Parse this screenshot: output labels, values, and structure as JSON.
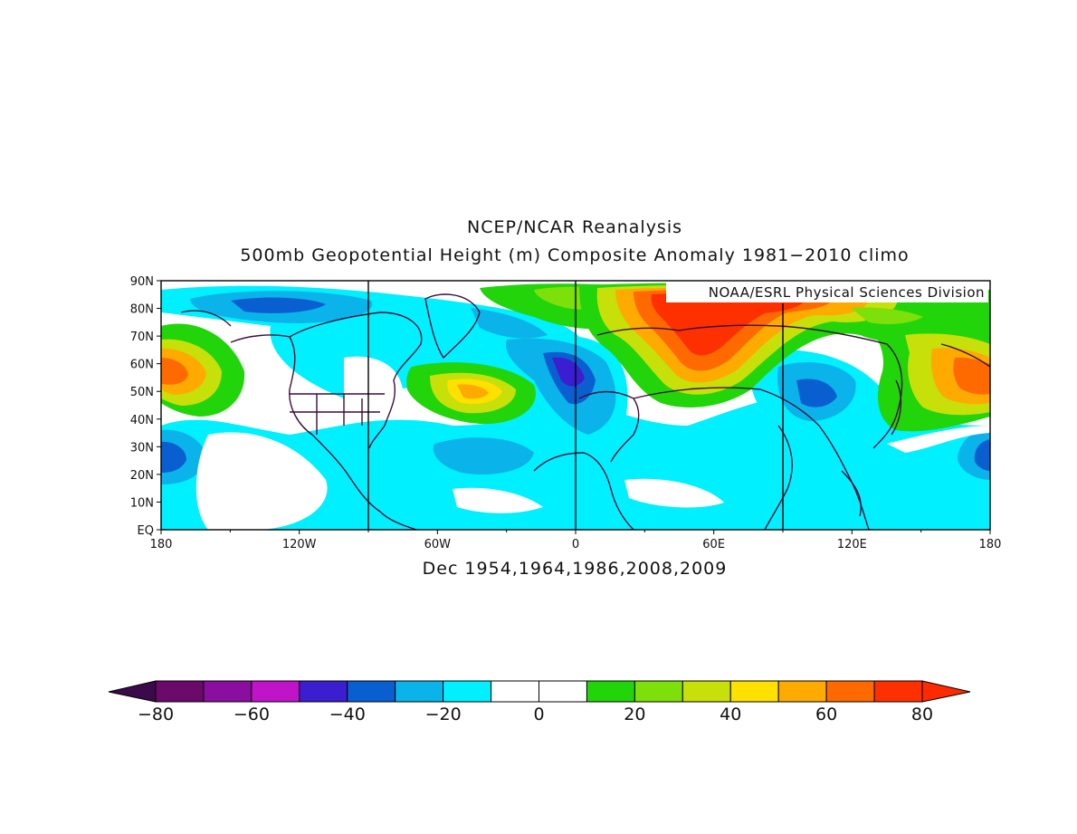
{
  "title_line1": "NCEP/NCAR Reanalysis",
  "title_line2": "500mb Geopotential Height (m) Composite Anomaly 1981−2010 climo",
  "credit": "NOAA/ESRL Physical Sciences Division",
  "caption": "Dec 1954,1964,1986,2008,2009",
  "lat_labels": [
    "90N",
    "80N",
    "70N",
    "60N",
    "50N",
    "40N",
    "30N",
    "20N",
    "10N",
    "EQ"
  ],
  "lon_labels": [
    "180",
    "120W",
    "60W",
    "0",
    "60E",
    "120E",
    "180"
  ],
  "colorbar": {
    "labels": [
      "−80",
      "−60",
      "−40",
      "−20",
      "0",
      "20",
      "40",
      "60",
      "80"
    ],
    "low_arrow_color": "#3a0a4a",
    "high_arrow_color": "#ff2a00",
    "colors": [
      "#6b0a6b",
      "#8a0fa0",
      "#c014c8",
      "#3b1ecf",
      "#0a5fd0",
      "#0ab4ea",
      "#00f0ff",
      "#ffffff",
      "#ffffff",
      "#22d40a",
      "#7ee00a",
      "#c8e00a",
      "#ffe100",
      "#ffaa00",
      "#ff6a00",
      "#ff3000"
    ]
  },
  "colors": {
    "frame": "#000000",
    "coast": "#3a0f3a",
    "gridline": "#000000"
  }
}
